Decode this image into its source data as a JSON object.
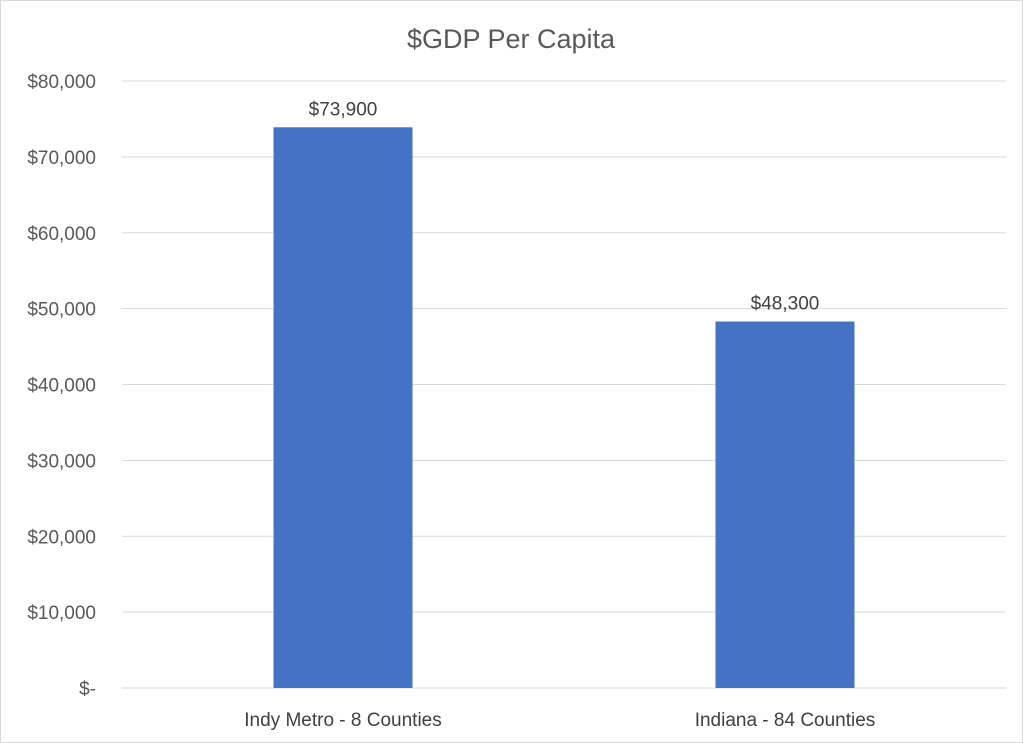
{
  "chart_data": {
    "type": "bar",
    "title": "$GDP Per Capita",
    "categories": [
      "Indy Metro - 8 Counties",
      "Indiana - 84 Counties"
    ],
    "values": [
      73900,
      48300
    ],
    "data_labels": [
      "$73,900",
      "$48,300"
    ],
    "ylim": [
      0,
      80000
    ],
    "yticks": [
      0,
      10000,
      20000,
      30000,
      40000,
      50000,
      60000,
      70000,
      80000
    ],
    "ytick_labels": [
      "$-",
      "$10,000",
      "$20,000",
      "$30,000",
      "$40,000",
      "$50,000",
      "$60,000",
      "$70,000",
      "$80,000"
    ],
    "xlabel": "",
    "ylabel": "",
    "grid": true,
    "legend": "none",
    "bar_color": "#4472C4"
  }
}
